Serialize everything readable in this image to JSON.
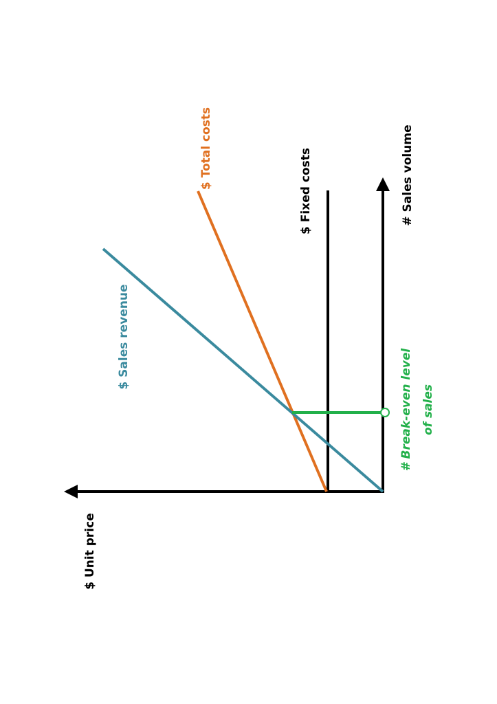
{
  "labels": {
    "y_axis": "$ Unit price",
    "x_axis": "# Sales volume",
    "fixed_costs": "$ Fixed costs",
    "total_costs": "$ Total costs",
    "sales_revenue": "$ Sales revenue",
    "break_even": [
      "# Break-even level",
      "of sales"
    ]
  }
}
